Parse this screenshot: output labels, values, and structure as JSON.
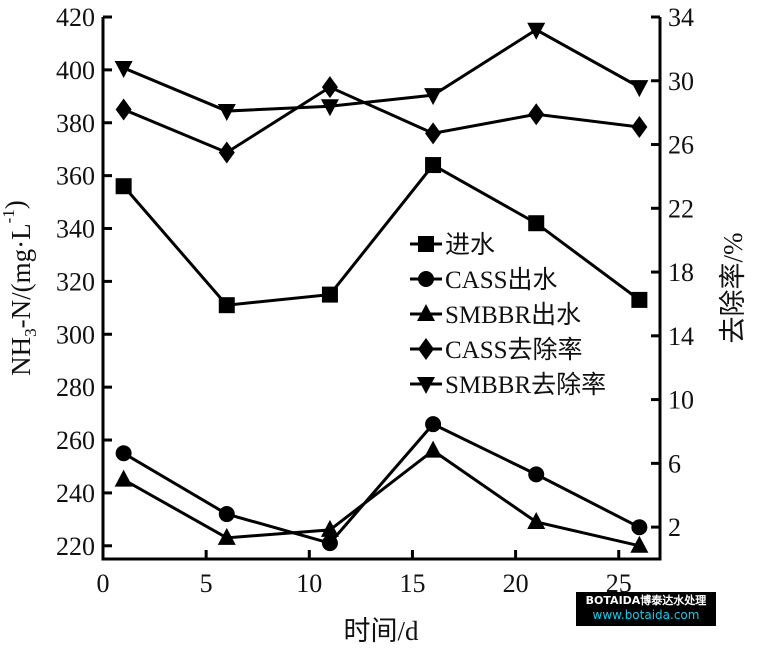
{
  "chart_data": {
    "type": "line",
    "xlabel": "时间/d",
    "ylabel": "NH3-N/(mg·L-1)",
    "y2label": "去除率/%",
    "xlim": [
      0,
      27
    ],
    "ylim": [
      215,
      420
    ],
    "y2lim": [
      0,
      34
    ],
    "xticks": [
      0,
      5,
      10,
      15,
      20,
      25
    ],
    "yticks": [
      220,
      240,
      260,
      280,
      300,
      320,
      340,
      360,
      380,
      400,
      420
    ],
    "y2ticks": [
      2,
      6,
      10,
      14,
      18,
      22,
      26,
      30,
      34
    ],
    "grid": false,
    "legend_position": "center-right",
    "x": [
      1,
      6,
      11,
      16,
      21,
      26
    ],
    "series": [
      {
        "name": "进水",
        "axis": "left",
        "marker": "square",
        "values": [
          356,
          311,
          315,
          364,
          342,
          313
        ]
      },
      {
        "name": "CASS出水",
        "axis": "left",
        "marker": "circle",
        "values": [
          255,
          232,
          221,
          266,
          247,
          227
        ]
      },
      {
        "name": "SMBBR出水",
        "axis": "left",
        "marker": "triangle-up",
        "values": [
          245,
          223,
          226,
          256,
          229,
          220
        ]
      },
      {
        "name": "CASS去除率",
        "axis": "right",
        "marker": "diamond",
        "values": [
          28.2,
          25.5,
          29.6,
          26.7,
          27.9,
          27.1
        ]
      },
      {
        "name": "SMBBR去除率",
        "axis": "right",
        "marker": "triangle-down",
        "values": [
          30.8,
          28.1,
          28.4,
          29.1,
          33.2,
          29.6
        ]
      }
    ],
    "color": "#000000"
  },
  "watermark": {
    "brand": "BOTAIDA博泰达水处理",
    "url": "www.botaida.com"
  }
}
